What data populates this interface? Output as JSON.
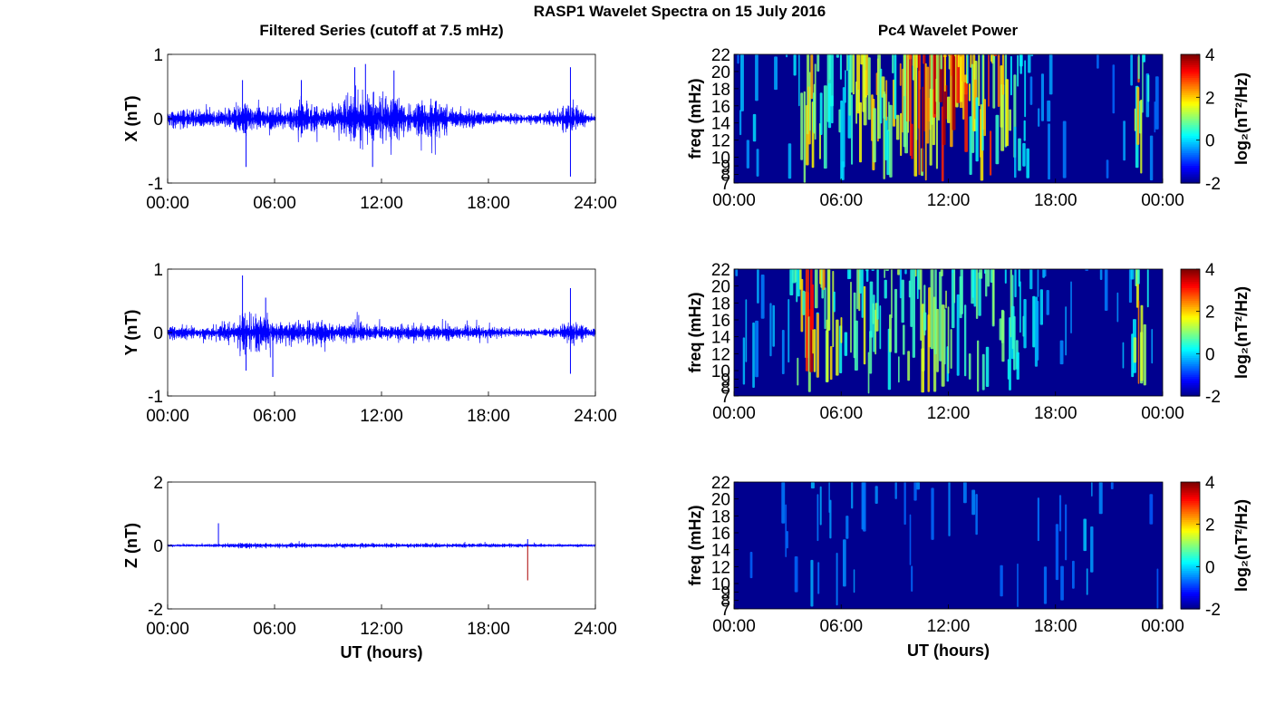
{
  "figure": {
    "title": "RASP1 Wavelet Spectra on 15 July 2016",
    "left_title": "Filtered Series (cutoff at 7.5 mHz)",
    "right_title": "Pc4 Wavelet Power"
  },
  "colors": {
    "trace": "#0000ff",
    "spike": "#aa0000",
    "spec_bg": "#00008f"
  },
  "chart_data": [
    {
      "type": "line",
      "id": "x-series",
      "ylabel": "X (nT)",
      "xlabel": "",
      "xlim": [
        0,
        24
      ],
      "ylim": [
        -1,
        1
      ],
      "xticks": [
        "00:00",
        "06:00",
        "12:00",
        "18:00",
        "24:00"
      ],
      "yticks": [
        "-1",
        "0",
        "1"
      ],
      "envelope": {
        "x": [
          0,
          1,
          2,
          3,
          3.7,
          4.2,
          4.6,
          5.5,
          6.5,
          7.2,
          8,
          9,
          10,
          10.8,
          11.3,
          12,
          12.7,
          13.5,
          14.5,
          15.2,
          16,
          17,
          18,
          19,
          20,
          21,
          22,
          22.6,
          23,
          23.5,
          24
        ],
        "amp": [
          0.2,
          0.2,
          0.18,
          0.2,
          0.3,
          0.45,
          0.3,
          0.25,
          0.3,
          0.35,
          0.4,
          0.3,
          0.45,
          0.55,
          0.6,
          0.55,
          0.5,
          0.35,
          0.45,
          0.35,
          0.25,
          0.2,
          0.15,
          0.12,
          0.1,
          0.12,
          0.18,
          0.35,
          0.3,
          0.1,
          0.08
        ]
      },
      "peaks": [
        {
          "t": 4.2,
          "v": 0.6
        },
        {
          "t": 4.4,
          "v": -0.75
        },
        {
          "t": 7.5,
          "v": 0.6
        },
        {
          "t": 10.5,
          "v": 0.8
        },
        {
          "t": 11.1,
          "v": 0.85
        },
        {
          "t": 11.5,
          "v": -0.75
        },
        {
          "t": 12.7,
          "v": 0.75
        },
        {
          "t": 22.6,
          "v": 0.8
        },
        {
          "t": 22.6,
          "v": -0.9
        }
      ]
    },
    {
      "type": "line",
      "id": "y-series",
      "ylabel": "Y (nT)",
      "xlabel": "",
      "xlim": [
        0,
        24
      ],
      "ylim": [
        -1,
        1
      ],
      "xticks": [
        "00:00",
        "06:00",
        "12:00",
        "18:00",
        "24:00"
      ],
      "yticks": [
        "-1",
        "0",
        "1"
      ],
      "envelope": {
        "x": [
          0,
          1,
          2,
          3,
          3.8,
          4.2,
          4.6,
          5,
          5.6,
          6.5,
          7.5,
          8.5,
          9.5,
          10.5,
          11.5,
          12.5,
          13.5,
          14.5,
          15.5,
          16.5,
          17.5,
          18.5,
          19.5,
          20.5,
          21.5,
          22.2,
          22.6,
          23,
          24
        ],
        "amp": [
          0.18,
          0.18,
          0.15,
          0.2,
          0.35,
          0.55,
          0.45,
          0.4,
          0.35,
          0.25,
          0.3,
          0.25,
          0.2,
          0.25,
          0.2,
          0.2,
          0.18,
          0.2,
          0.18,
          0.15,
          0.14,
          0.12,
          0.1,
          0.1,
          0.1,
          0.15,
          0.3,
          0.2,
          0.08
        ]
      },
      "peaks": [
        {
          "t": 4.2,
          "v": 0.9
        },
        {
          "t": 4.4,
          "v": -0.6
        },
        {
          "t": 5.5,
          "v": 0.55
        },
        {
          "t": 5.9,
          "v": -0.7
        },
        {
          "t": 22.6,
          "v": 0.7
        },
        {
          "t": 22.6,
          "v": -0.65
        }
      ]
    },
    {
      "type": "line",
      "id": "z-series",
      "ylabel": "Z (nT)",
      "xlabel": "UT (hours)",
      "xlim": [
        0,
        24
      ],
      "ylim": [
        -2,
        2
      ],
      "xticks": [
        "00:00",
        "06:00",
        "12:00",
        "18:00",
        "24:00"
      ],
      "yticks": [
        "-2",
        "0",
        "2"
      ],
      "envelope": {
        "x": [
          0,
          2,
          3.5,
          4.5,
          6,
          9,
          12,
          15,
          18,
          20,
          22,
          24
        ],
        "amp": [
          0.05,
          0.06,
          0.1,
          0.14,
          0.12,
          0.1,
          0.1,
          0.1,
          0.1,
          0.08,
          0.07,
          0.06
        ]
      },
      "peaks": [
        {
          "t": 2.85,
          "v": 0.7
        },
        {
          "t": 20.2,
          "v": -1.1
        },
        {
          "t": 20.2,
          "v": 0.2
        }
      ]
    },
    {
      "type": "heatmap",
      "id": "x-wavelet",
      "ylabel": "freq (mHz)",
      "xlabel": "",
      "xlim": [
        0,
        24
      ],
      "ylim": [
        7,
        22
      ],
      "xticks": [
        "00:00",
        "06:00",
        "12:00",
        "18:00",
        "00:00"
      ],
      "yticks": [
        "7",
        "8",
        "9",
        "10",
        "12",
        "14",
        "16",
        "18",
        "20",
        "22"
      ],
      "colorbar": {
        "label": "log₂(nT²/Hz)",
        "min": -2,
        "max": 4,
        "ticks": [
          "-2",
          "0",
          "2",
          "4"
        ]
      },
      "activity": {
        "x": [
          0,
          1,
          2,
          3,
          3.7,
          4.2,
          4.6,
          5.5,
          6.5,
          7.2,
          8,
          9,
          10,
          10.8,
          11.3,
          12,
          12.7,
          13.5,
          14.5,
          15.2,
          16,
          17,
          18,
          19,
          20,
          21,
          22,
          22.6,
          23,
          23.5,
          24
        ],
        "level": [
          0.1,
          0.15,
          0.12,
          0.15,
          0.3,
          0.75,
          0.4,
          0.25,
          0.35,
          0.55,
          0.6,
          0.45,
          0.75,
          0.85,
          0.9,
          0.85,
          0.7,
          0.5,
          0.65,
          0.45,
          0.2,
          0.12,
          0.08,
          0.05,
          0.05,
          0.05,
          0.15,
          0.6,
          0.3,
          0.05,
          0.05
        ]
      }
    },
    {
      "type": "heatmap",
      "id": "y-wavelet",
      "ylabel": "freq (mHz)",
      "xlabel": "",
      "xlim": [
        0,
        24
      ],
      "ylim": [
        7,
        22
      ],
      "xticks": [
        "00:00",
        "06:00",
        "12:00",
        "18:00",
        "00:00"
      ],
      "yticks": [
        "7",
        "8",
        "9",
        "10",
        "12",
        "14",
        "16",
        "18",
        "20",
        "22"
      ],
      "colorbar": {
        "label": "log₂(nT²/Hz)",
        "min": -2,
        "max": 4,
        "ticks": [
          "-2",
          "0",
          "2",
          "4"
        ]
      },
      "activity": {
        "x": [
          0,
          1,
          2,
          3,
          3.8,
          4.2,
          4.6,
          5,
          5.6,
          6.5,
          7.5,
          8.5,
          9.5,
          10.5,
          11.5,
          12.5,
          13.5,
          14.5,
          15.5,
          16.5,
          17.5,
          18.5,
          19.5,
          20.5,
          21.5,
          22.2,
          22.6,
          23,
          24
        ],
        "level": [
          0.12,
          0.15,
          0.12,
          0.2,
          0.55,
          0.85,
          0.65,
          0.55,
          0.5,
          0.35,
          0.45,
          0.35,
          0.35,
          0.55,
          0.4,
          0.35,
          0.3,
          0.35,
          0.3,
          0.2,
          0.12,
          0.1,
          0.08,
          0.08,
          0.08,
          0.2,
          0.6,
          0.3,
          0.05
        ]
      }
    },
    {
      "type": "heatmap",
      "id": "z-wavelet",
      "ylabel": "freq (mHz)",
      "xlabel": "UT (hours)",
      "xlim": [
        0,
        24
      ],
      "ylim": [
        7,
        22
      ],
      "xticks": [
        "00:00",
        "06:00",
        "12:00",
        "18:00",
        "00:00"
      ],
      "yticks": [
        "7",
        "8",
        "9",
        "10",
        "12",
        "14",
        "16",
        "18",
        "20",
        "22"
      ],
      "colorbar": {
        "label": "log₂(nT²/Hz)",
        "min": -2,
        "max": 4,
        "ticks": [
          "-2",
          "0",
          "2",
          "4"
        ]
      },
      "activity": {
        "x": [
          0,
          2,
          3.5,
          4.5,
          6,
          9,
          12,
          15,
          18,
          20,
          22,
          24
        ],
        "level": [
          0.02,
          0.03,
          0.08,
          0.12,
          0.1,
          0.06,
          0.08,
          0.05,
          0.04,
          0.15,
          0.03,
          0.02
        ]
      }
    }
  ]
}
